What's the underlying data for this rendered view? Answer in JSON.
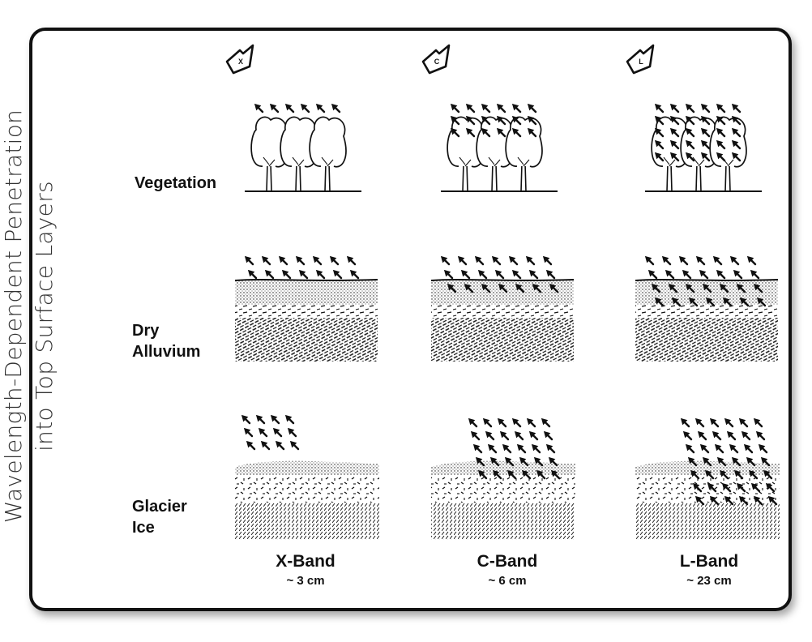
{
  "title": {
    "line1": "Wavelength-Dependent Penetration",
    "line2": "into Top Surface Layers"
  },
  "rows": [
    {
      "label": "Vegetation"
    },
    {
      "label_line1": "Dry",
      "label_line2": "Alluvium"
    },
    {
      "label_line1": "Glacier",
      "label_line2": "Ice"
    }
  ],
  "bands": [
    {
      "letter": "X",
      "name": "X-Band",
      "wavelength": "~ 3 cm"
    },
    {
      "letter": "C",
      "name": "C-Band",
      "wavelength": "~ 6 cm"
    },
    {
      "letter": "L",
      "name": "L-Band",
      "wavelength": "~ 23 cm"
    }
  ],
  "colors": {
    "ink": "#111111",
    "frame": "#111111",
    "title": "#333333",
    "background": "#ffffff"
  }
}
